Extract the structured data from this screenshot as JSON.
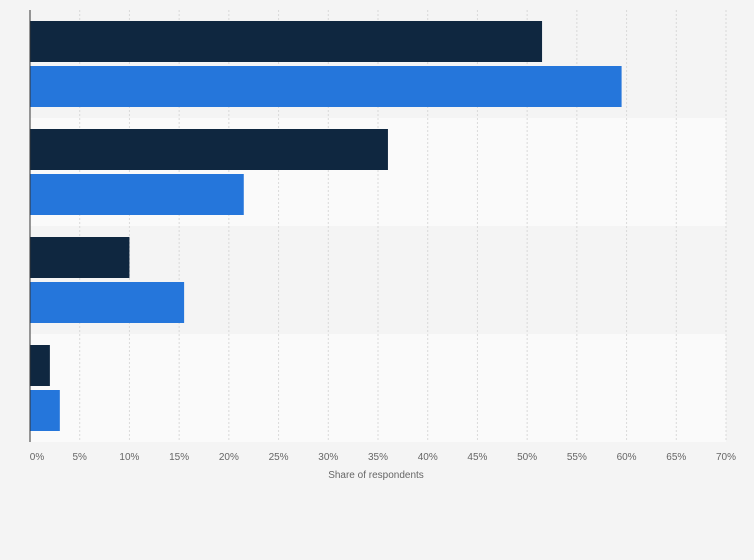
{
  "chart_data": {
    "type": "bar",
    "orientation": "horizontal",
    "title": "",
    "xlabel": "Share of respondents",
    "ylabel": "",
    "xlim": [
      0,
      70
    ],
    "x_ticks": [
      0,
      5,
      10,
      15,
      20,
      25,
      30,
      35,
      40,
      45,
      50,
      55,
      60,
      65,
      70
    ],
    "x_tick_labels": [
      "0%",
      "5%",
      "10%",
      "15%",
      "20%",
      "25%",
      "30%",
      "35%",
      "40%",
      "45%",
      "50%",
      "55%",
      "60%",
      "65%",
      "70%"
    ],
    "categories": [
      "",
      "",
      "",
      ""
    ],
    "series": [
      {
        "values": [
          51.5,
          36,
          10,
          2
        ],
        "color": "#0f2740"
      },
      {
        "values": [
          59.5,
          21.5,
          15.5,
          3
        ],
        "color": "#2576db"
      }
    ],
    "grid": true,
    "legend": "none"
  },
  "colors": {
    "background": "#f4f4f4",
    "band_dark": "#f4f4f4",
    "band_light": "#fafafa",
    "grid": "#d9d9d9",
    "axis": "#333333"
  }
}
